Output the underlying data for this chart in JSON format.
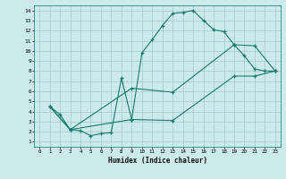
{
  "xlabel": "Humidex (Indice chaleur)",
  "bg_color": "#cceaea",
  "grid_color": "#aacece",
  "line_color": "#1a7a6e",
  "xlim": [
    -0.5,
    23.5
  ],
  "ylim": [
    0.5,
    14.5
  ],
  "xticks": [
    0,
    1,
    2,
    3,
    4,
    5,
    6,
    7,
    8,
    9,
    10,
    11,
    12,
    13,
    14,
    15,
    16,
    17,
    18,
    19,
    20,
    21,
    22,
    23
  ],
  "yticks": [
    1,
    2,
    3,
    4,
    5,
    6,
    7,
    8,
    9,
    10,
    11,
    12,
    13,
    14
  ],
  "line1": {
    "x": [
      1,
      2,
      3,
      4,
      5,
      6,
      7,
      8,
      9,
      10,
      11,
      12,
      13,
      14,
      15,
      16,
      17,
      18,
      19,
      20,
      21,
      22,
      23
    ],
    "y": [
      4.5,
      3.7,
      2.2,
      2.1,
      1.6,
      1.8,
      1.9,
      7.3,
      3.2,
      9.8,
      11.1,
      12.5,
      13.7,
      13.8,
      14.0,
      13.0,
      12.1,
      11.9,
      10.6,
      9.5,
      8.2,
      8.0,
      8.0
    ]
  },
  "line2": {
    "x": [
      1,
      3,
      9,
      13,
      19,
      21,
      23
    ],
    "y": [
      4.5,
      2.2,
      6.3,
      5.9,
      10.6,
      10.5,
      8.0
    ]
  },
  "line3": {
    "x": [
      1,
      3,
      9,
      13,
      19,
      21,
      23
    ],
    "y": [
      4.5,
      2.2,
      3.2,
      3.1,
      7.5,
      7.5,
      8.0
    ]
  }
}
